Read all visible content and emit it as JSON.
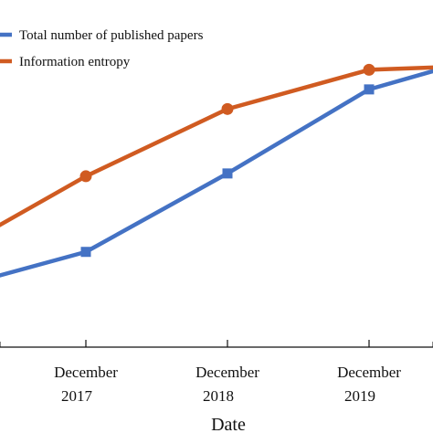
{
  "chart_data": {
    "type": "line",
    "xlabel": "Date",
    "ylabel": "",
    "categories": [
      "",
      "December 2017",
      "December 2018",
      "December 2019",
      ""
    ],
    "x_ticks": [
      {
        "line1": "December",
        "line2": "2017",
        "index": 1
      },
      {
        "line1": "December",
        "line2": "2018",
        "index": 2
      },
      {
        "line1": "December",
        "line2": "2019",
        "index": 3
      }
    ],
    "legend_position": "top-left",
    "grid": false,
    "series": [
      {
        "name": "Total number of published papers",
        "color": "#4472C4",
        "marker": "square",
        "values": [
          0.2,
          0.34,
          0.62,
          0.92,
          1.0
        ]
      },
      {
        "name": "Information entropy",
        "color": "#D05B21",
        "marker": "circle",
        "values": [
          0.32,
          0.61,
          0.85,
          0.99,
          1.0
        ]
      }
    ],
    "ylim": [
      0,
      1.05
    ]
  }
}
